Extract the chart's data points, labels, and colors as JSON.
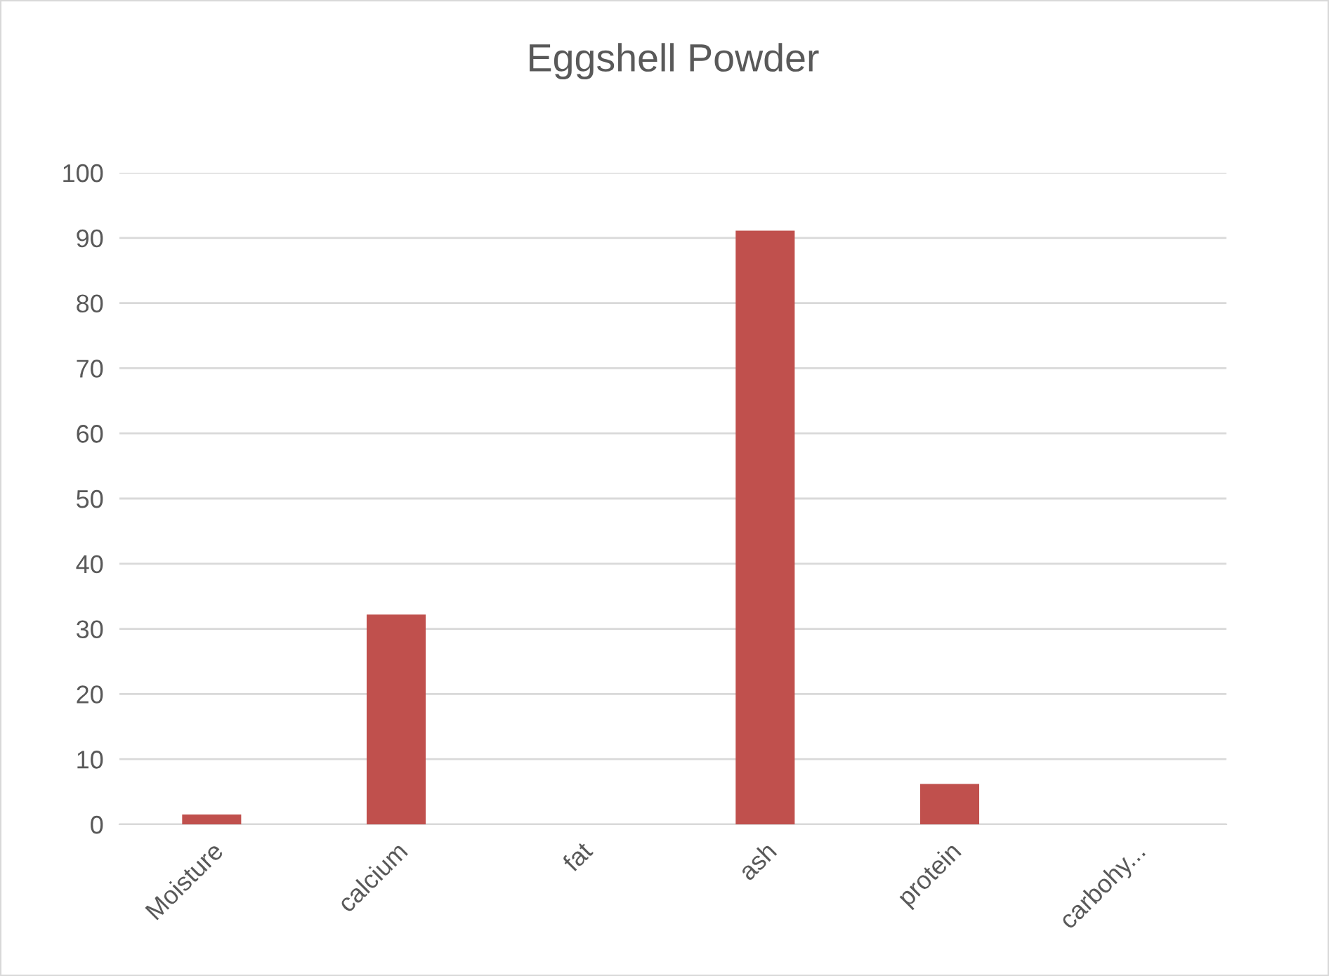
{
  "chart_data": {
    "type": "bar",
    "title": "Eggshell Powder",
    "categories": [
      "Moisture",
      "calcium",
      "fat",
      "ash",
      "protein",
      "carbohy..."
    ],
    "values": [
      1.5,
      32.2,
      0,
      91.1,
      6.2,
      0
    ],
    "color": "#c0504d",
    "ylim": [
      0,
      100
    ],
    "yticks": [
      0,
      10,
      20,
      30,
      40,
      50,
      60,
      70,
      80,
      90,
      100
    ],
    "grid": "y"
  }
}
